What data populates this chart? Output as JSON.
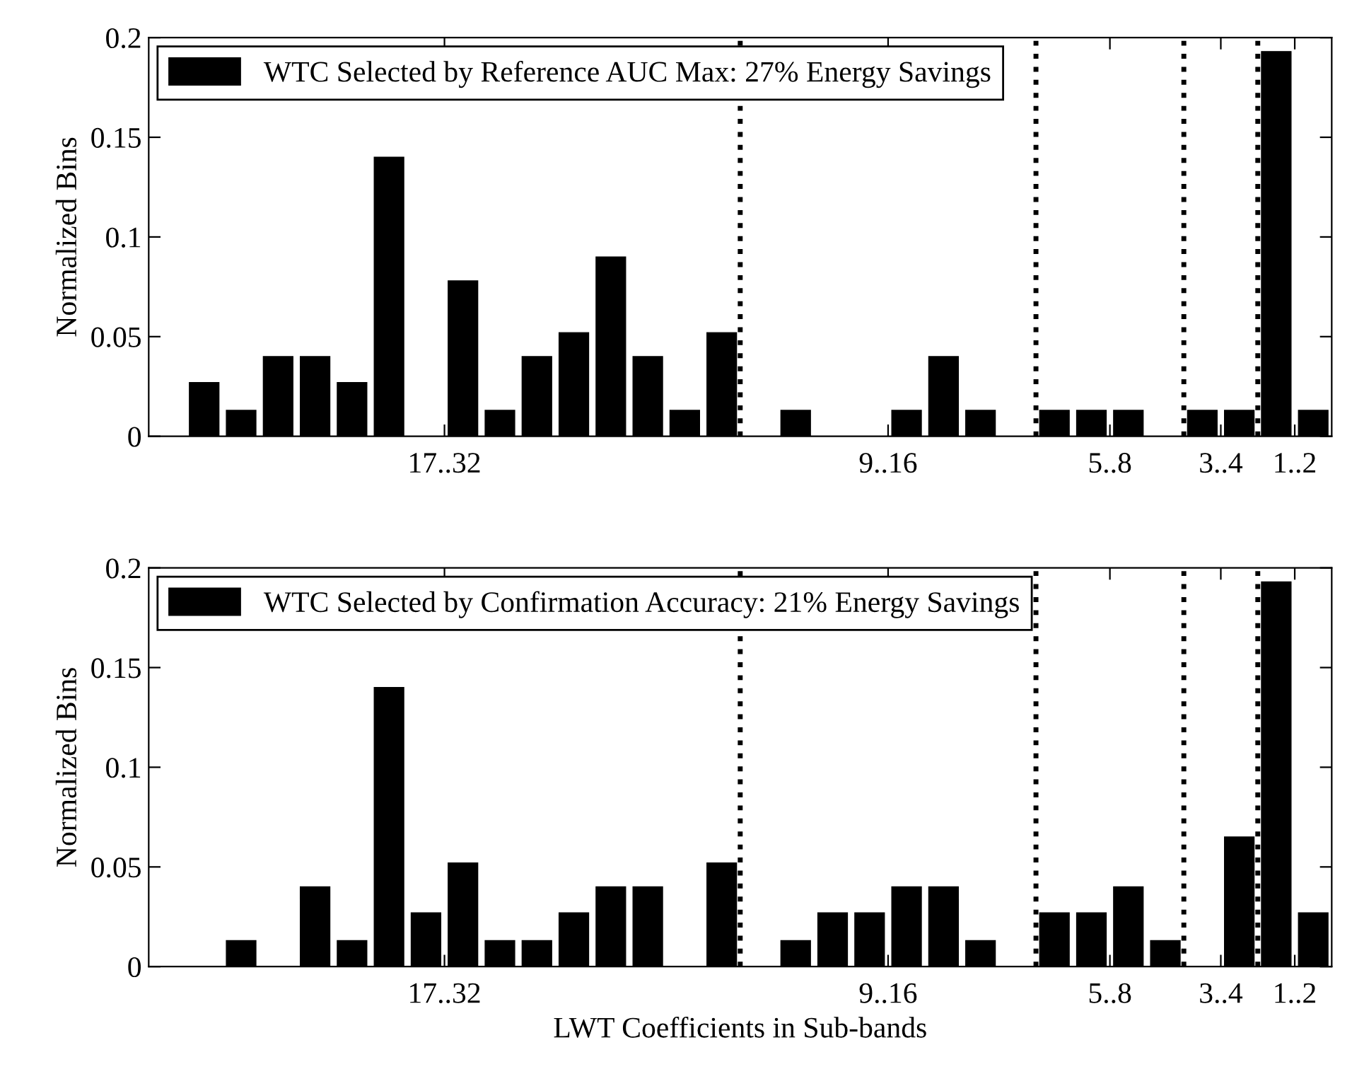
{
  "chart_data": [
    {
      "type": "bar",
      "ylabel": "Normalized Bins",
      "categories": [
        null,
        null,
        null,
        null,
        null,
        null,
        null,
        "17..32",
        null,
        null,
        null,
        null,
        null,
        null,
        null,
        null,
        null,
        null,
        null,
        "9..16",
        null,
        null,
        null,
        null,
        null,
        "5..8",
        null,
        null,
        "3..4",
        null,
        "1..2",
        null
      ],
      "ylim": [
        0,
        0.2
      ],
      "yticks": [
        0,
        0.05,
        0.1,
        0.15,
        0.2
      ],
      "series": [
        {
          "name": "WTC Selected by Reference AUC Max: 27% Energy Savings",
          "color": "#000000",
          "values": [
            0,
            0.027,
            0.013,
            0.04,
            0.04,
            0.027,
            0.14,
            0,
            0.078,
            0.013,
            0.04,
            0.052,
            0.09,
            0.04,
            0.013,
            0.052,
            0,
            0.013,
            0,
            0,
            0.013,
            0.04,
            0.013,
            0,
            0.013,
            0.013,
            0.013,
            0,
            0.013,
            0.013,
            0.193,
            0.013
          ]
        }
      ],
      "legend": "top left",
      "grid": "x"
    },
    {
      "type": "bar",
      "ylabel": "Normalized Bins",
      "xlabel": "LWT Coefficients in Sub-bands",
      "categories": [
        null,
        null,
        null,
        null,
        null,
        null,
        null,
        "17..32",
        null,
        null,
        null,
        null,
        null,
        null,
        null,
        null,
        null,
        null,
        null,
        "9..16",
        null,
        null,
        null,
        null,
        null,
        "5..8",
        null,
        null,
        "3..4",
        null,
        "1..2",
        null
      ],
      "ylim": [
        0,
        0.2
      ],
      "yticks": [
        0,
        0.05,
        0.1,
        0.15,
        0.2
      ],
      "series": [
        {
          "name": "WTC Selected by Confirmation Accuracy: 21% Energy Savings",
          "color": "#000000",
          "values": [
            0,
            0,
            0.013,
            0,
            0.04,
            0.013,
            0.14,
            0.027,
            0.052,
            0.013,
            0.013,
            0.027,
            0.04,
            0.04,
            0,
            0.052,
            0,
            0.013,
            0.027,
            0.027,
            0.04,
            0.04,
            0.013,
            0,
            0.027,
            0.027,
            0.04,
            0.013,
            0,
            0.065,
            0.193,
            0.027
          ]
        }
      ],
      "legend": "top left",
      "grid": "x"
    }
  ]
}
